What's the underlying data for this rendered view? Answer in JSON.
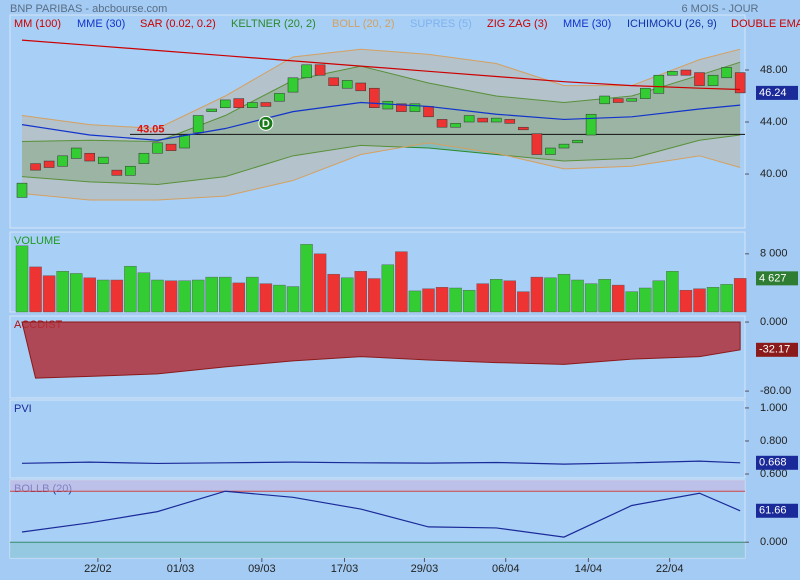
{
  "header": {
    "source": "BNP PARIBAS - abcbourse.com",
    "period": "6 MOIS - JOUR"
  },
  "chart_data": [
    {
      "type": "candlestick",
      "open": [
        38.2,
        40.8,
        41.0,
        40.6,
        41.2,
        41.6,
        40.8,
        40.3,
        39.9,
        40.8,
        41.6,
        42.3,
        42.0,
        43.2,
        44.8,
        45.1,
        45.8,
        45.1,
        45.5,
        45.6,
        46.3,
        47.4,
        48.4,
        47.4,
        46.6,
        47.0,
        46.6,
        45.0,
        45.4,
        44.8,
        45.2,
        44.2,
        43.6,
        44.0,
        44.3,
        44.0,
        44.2,
        43.6,
        43.1,
        41.5,
        42.0,
        42.4,
        43.0,
        45.4,
        45.8,
        45.6,
        45.8,
        46.2,
        47.6,
        48.0,
        47.8,
        46.8,
        47.4,
        47.8
      ],
      "close": [
        39.3,
        40.3,
        40.5,
        41.4,
        42.0,
        41.0,
        41.3,
        39.9,
        40.6,
        41.6,
        42.4,
        41.8,
        43.0,
        44.5,
        45.0,
        45.7,
        45.1,
        45.5,
        45.2,
        46.2,
        47.4,
        48.4,
        47.6,
        46.8,
        47.2,
        46.4,
        45.1,
        45.6,
        44.8,
        45.4,
        44.4,
        43.6,
        43.9,
        44.5,
        44.0,
        44.3,
        43.9,
        43.4,
        41.5,
        42.0,
        42.3,
        42.6,
        44.6,
        46.0,
        45.5,
        45.8,
        46.6,
        47.6,
        47.9,
        47.6,
        46.8,
        47.6,
        48.2,
        46.24
      ],
      "up_color": "#33cc33",
      "down_color": "#ee3333",
      "ylim": [
        35.85,
        52.23
      ],
      "yticks": [
        {
          "value": 40,
          "label": "40.00"
        },
        {
          "value": 44,
          "label": "44.00"
        },
        {
          "value": 48,
          "label": "48.00"
        }
      ],
      "level": 43.05,
      "event": {
        "label": "D",
        "x": 18,
        "value": 43.9
      },
      "series": [
        {
          "name": "MM (100)",
          "color": "#cc0000",
          "x": [
            0,
            5,
            10,
            15,
            20,
            25,
            30,
            35,
            40,
            45,
            50,
            53
          ],
          "values": [
            50.3,
            49.9,
            49.5,
            49.1,
            48.7,
            48.3,
            47.9,
            47.5,
            47.1,
            46.8,
            46.6,
            46.5
          ]
        },
        {
          "name": "MME (30)",
          "color": "#1133cc",
          "x": [
            0,
            5,
            10,
            15,
            20,
            25,
            30,
            35,
            40,
            45,
            50,
            53
          ],
          "values": [
            43.8,
            43.0,
            42.6,
            43.5,
            44.8,
            45.5,
            45.2,
            44.6,
            44.2,
            44.4,
            45.0,
            45.3
          ]
        },
        {
          "name": "SAR (0.02, 0.2)",
          "color": "#cc0000"
        },
        {
          "name": "KELTNER (20, 2)",
          "color": "#2a8a2a",
          "x": [
            0,
            5,
            10,
            15,
            20,
            25,
            30,
            35,
            40,
            45,
            50,
            53
          ],
          "upper": [
            42.5,
            42.6,
            42.5,
            44.5,
            47.2,
            48.3,
            47.0,
            46.0,
            45.5,
            46.0,
            47.6,
            48.6
          ],
          "lower": [
            39.8,
            39.4,
            39.2,
            39.8,
            41.4,
            42.2,
            42.0,
            41.5,
            41.0,
            41.2,
            42.6,
            43.0
          ]
        },
        {
          "name": "BOLL (20, 2)",
          "color": "#d4a060",
          "x": [
            0,
            5,
            10,
            15,
            20,
            25,
            30,
            35,
            40,
            45,
            50,
            53
          ],
          "upper": [
            44.5,
            43.8,
            43.5,
            46.0,
            49.0,
            49.6,
            49.2,
            48.5,
            46.8,
            46.8,
            48.8,
            49.6
          ],
          "lower": [
            38.5,
            38.0,
            38.0,
            38.3,
            39.5,
            41.5,
            42.4,
            41.6,
            40.4,
            40.6,
            41.4,
            40.5
          ]
        },
        {
          "name": "SUPRES (5)",
          "color": "#7fb2f0"
        },
        {
          "name": "ZIG ZAG (3)",
          "color": "#cc0000"
        },
        {
          "name": "MME (30)",
          "color": "#1133cc"
        },
        {
          "name": "ICHIMOKU (26, 9)",
          "color": "#1133aa"
        },
        {
          "name": "DOUBLE EMA",
          "color": "#cc0000"
        }
      ]
    },
    {
      "type": "bar",
      "title": "VOLUME",
      "title_color": "#1f9a1f",
      "values": [
        9100,
        6200,
        5000,
        5600,
        5300,
        4700,
        4400,
        4400,
        6300,
        5400,
        4400,
        4300,
        4300,
        4400,
        4800,
        4800,
        4000,
        4800,
        3900,
        3700,
        3500,
        9300,
        8000,
        5200,
        4700,
        5600,
        4600,
        6500,
        8300,
        2900,
        3200,
        3400,
        3300,
        3000,
        3900,
        4500,
        4300,
        2800,
        4800,
        4700,
        5200,
        4400,
        3900,
        4500,
        3700,
        2800,
        3300,
        4300,
        5600,
        3000,
        3200,
        3400,
        3800,
        4627
      ],
      "last_value_label": "4 627",
      "box_color": "#2e7d32",
      "ylim": [
        0,
        11000
      ],
      "yticks": [
        {
          "value": 8000,
          "label": "8 000"
        }
      ]
    },
    {
      "type": "area",
      "title": "ACCDIST",
      "title_color": "#b01010",
      "color": "#b0303a",
      "box_color": "#8b1a1a",
      "x": [
        0,
        1,
        5,
        10,
        15,
        20,
        25,
        30,
        35,
        40,
        45,
        50,
        53
      ],
      "values": [
        0,
        -65,
        -63,
        -60,
        -52,
        -45,
        -40,
        -44,
        -47,
        -49,
        -43,
        -40,
        -32.17
      ],
      "ylim": [
        -88,
        7
      ],
      "yticks": [
        {
          "value": 0,
          "label": "0.000"
        },
        {
          "value": -80,
          "label": "-80.00"
        }
      ]
    },
    {
      "type": "line",
      "title": "PVI",
      "title_color": "#1a2a99",
      "color": "#1a2a99",
      "box_color": "#1a2a99",
      "x": [
        0,
        5,
        10,
        15,
        20,
        25,
        30,
        35,
        40,
        45,
        50,
        53
      ],
      "values": [
        0.665,
        0.672,
        0.664,
        0.668,
        0.672,
        0.668,
        0.666,
        0.67,
        0.66,
        0.668,
        0.678,
        0.668
      ],
      "ylim": [
        0.576,
        1.048
      ],
      "yticks": [
        {
          "value": 1,
          "label": "1.000"
        },
        {
          "value": 0.8,
          "label": "0.800"
        },
        {
          "value": 0.6,
          "label": "0.600"
        }
      ]
    },
    {
      "type": "line",
      "title": "BOLLB (20)",
      "title_color": "#1a2a99",
      "color": "#1a2a99",
      "box_color": "#1a2a99",
      "x": [
        0,
        5,
        10,
        15,
        20,
        25,
        30,
        35,
        40,
        45,
        50,
        53
      ],
      "values": [
        20,
        38,
        60,
        100,
        88,
        65,
        30,
        28,
        10,
        72,
        96,
        61.66
      ],
      "upper_level": 100,
      "ylim": [
        -31,
        122
      ],
      "yticks": [
        {
          "value": 0,
          "label": "0.000"
        }
      ],
      "xticks": [
        {
          "value": 5.6,
          "label": "22/02"
        },
        {
          "value": 11.7,
          "label": "01/03"
        },
        {
          "value": 17.7,
          "label": "09/03"
        },
        {
          "value": 23.8,
          "label": "17/03"
        },
        {
          "value": 29.7,
          "label": "29/03"
        },
        {
          "value": 35.7,
          "label": "06/04"
        },
        {
          "value": 41.8,
          "label": "14/04"
        },
        {
          "value": 47.8,
          "label": "22/04"
        }
      ]
    }
  ]
}
